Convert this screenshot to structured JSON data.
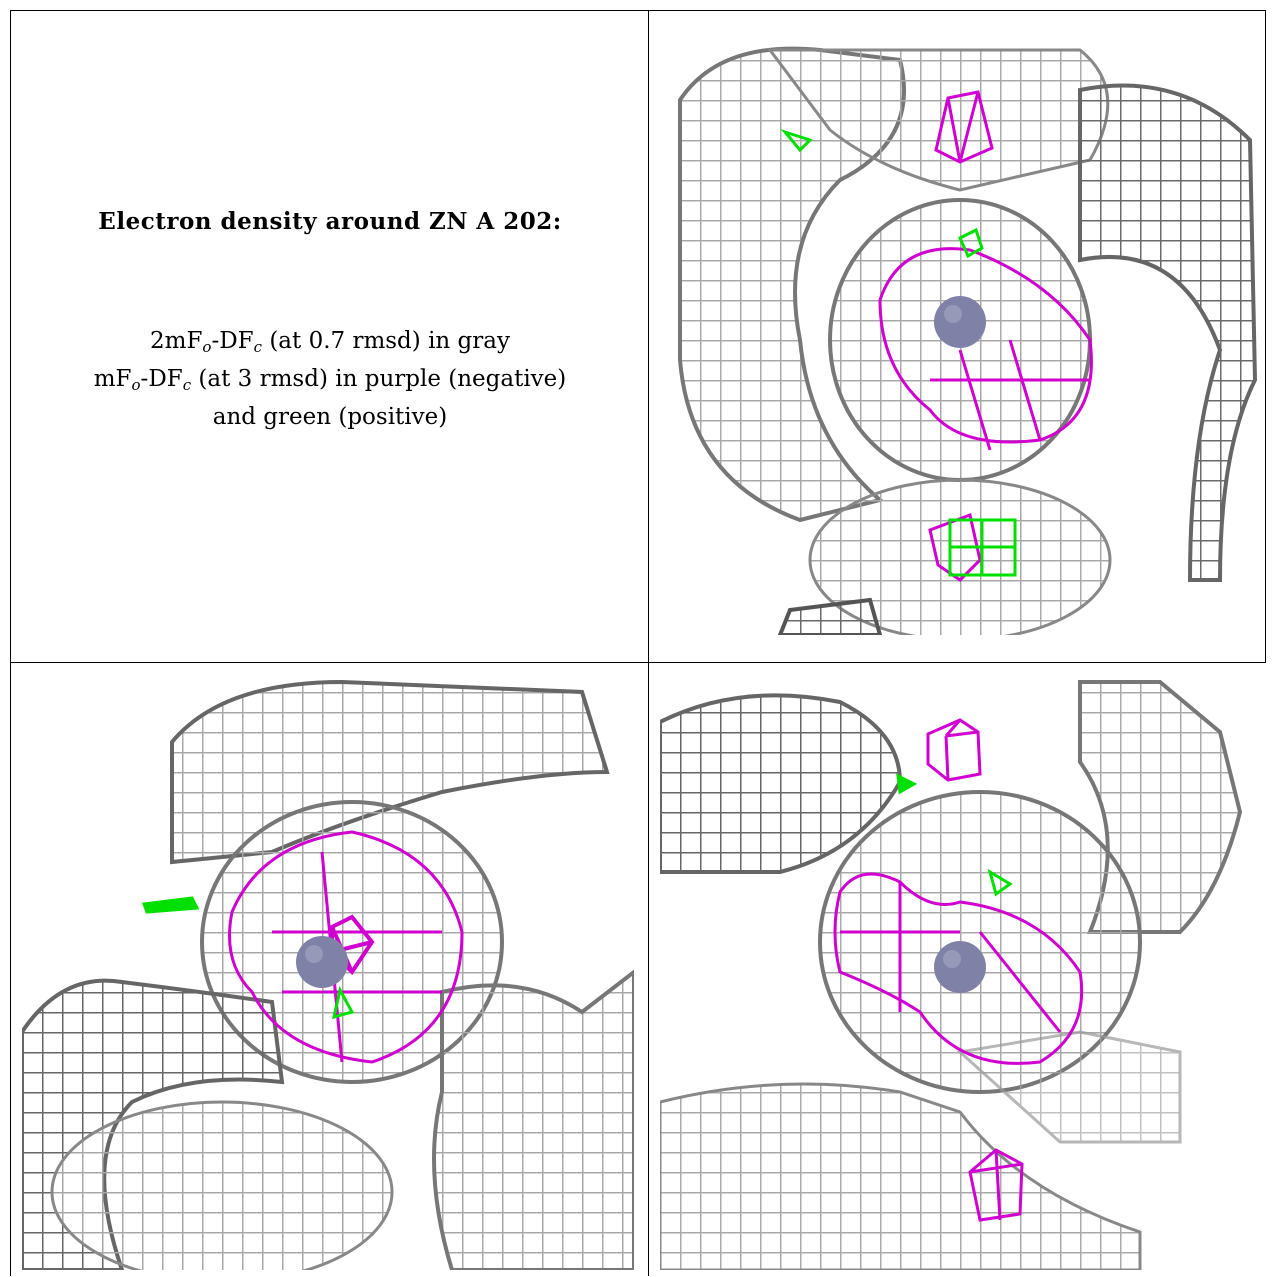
{
  "caption": {
    "title": "Electron density around ZN A 202:",
    "line1_main": "2mF",
    "line1_sub1": "o",
    "line1_mid": "-DF",
    "line1_sub2": "c",
    "line1_tail": " (at 0.7 rmsd) in gray",
    "line2_main": "mF",
    "line2_sub1": "o",
    "line2_mid": "-DF",
    "line2_sub2": "c",
    "line2_tail": " (at 3 rmsd) in purple (negative)",
    "line3": "and green (positive)"
  },
  "colors": {
    "mesh_gray": "#9a9a9a",
    "mesh_dark": "#5a5a5a",
    "negative_purple": "#d000d0",
    "positive_green": "#00e000",
    "zinc_atom": "#7f82a6"
  },
  "panels": [
    {
      "name": "view-top-right",
      "atom": "ZN A 202"
    },
    {
      "name": "view-bottom-left",
      "atom": "ZN A 202"
    },
    {
      "name": "view-bottom-right",
      "atom": "ZN A 202"
    }
  ]
}
